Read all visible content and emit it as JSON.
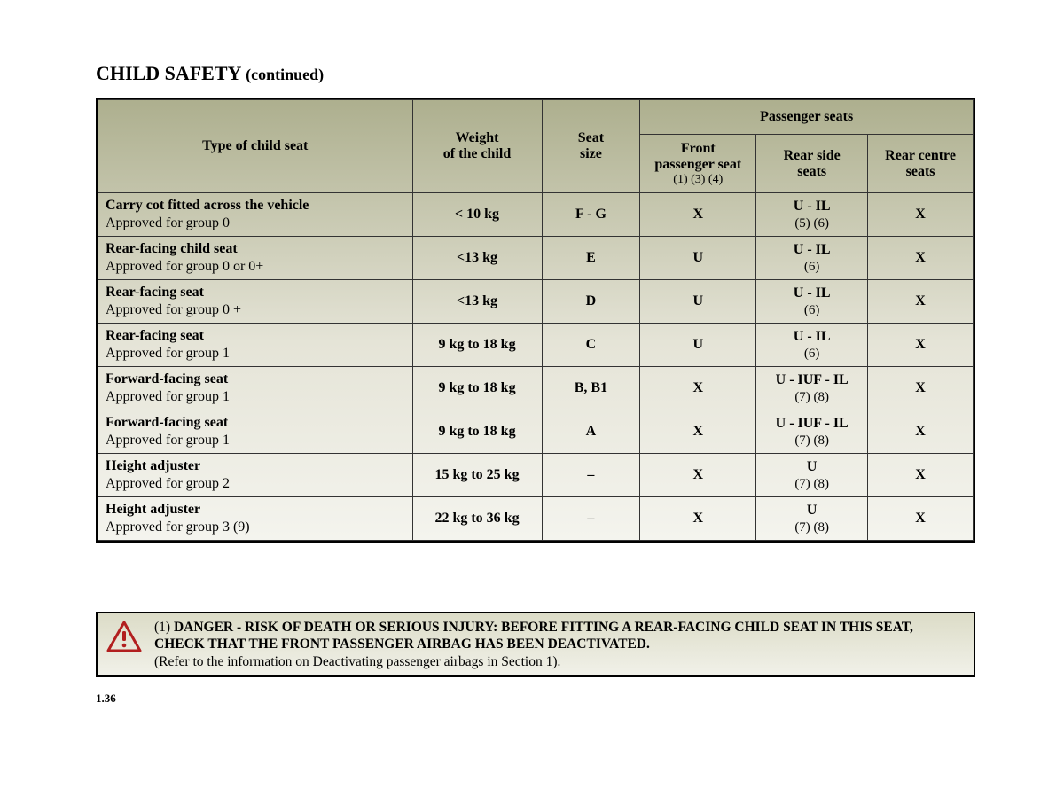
{
  "title_main": "CHILD SAFETY",
  "title_cont": "(continued)",
  "header": {
    "type": "Type of child seat",
    "weight": "Weight\nof the child",
    "size": "Seat\nsize",
    "passenger_seats": "Passenger seats",
    "front": "Front\npassenger seat",
    "front_sub": "(1) (3) (4)",
    "rear_side": "Rear side\nseats",
    "rear_centre": "Rear centre\nseats"
  },
  "rows": [
    {
      "type_bold": "Carry cot fitted across the vehicle",
      "type_sub": "Approved for group 0",
      "weight": "< 10 kg",
      "size": "F - G",
      "front": "X",
      "rear_side": "U - IL",
      "rear_side_sub": "(5) (6)",
      "rear_centre": "X"
    },
    {
      "type_bold": "Rear-facing child seat",
      "type_sub": "Approved for group 0 or 0+",
      "weight": "<13 kg",
      "size": "E",
      "front": "U",
      "rear_side": "U - IL",
      "rear_side_sub": "(6)",
      "rear_centre": "X"
    },
    {
      "type_bold": "Rear-facing seat",
      "type_sub": "Approved for group 0 +",
      "weight": "<13 kg",
      "size": "D",
      "front": "U",
      "rear_side": "U - IL",
      "rear_side_sub": "(6)",
      "rear_centre": "X"
    },
    {
      "type_bold": "Rear-facing seat",
      "type_sub": "Approved for group 1",
      "weight": "9 kg to 18 kg",
      "size": "C",
      "front": "U",
      "rear_side": "U - IL",
      "rear_side_sub": "(6)",
      "rear_centre": "X"
    },
    {
      "type_bold": "Forward-facing seat",
      "type_sub": "Approved for group 1",
      "weight": "9 kg to 18 kg",
      "size": "B, B1",
      "front": "X",
      "rear_side": "U - IUF - IL",
      "rear_side_sub": "(7) (8)",
      "rear_centre": "X"
    },
    {
      "type_bold": "Forward-facing seat",
      "type_sub": "Approved for group 1",
      "weight": "9 kg to 18 kg",
      "size": "A",
      "front": "X",
      "rear_side": "U - IUF - IL",
      "rear_side_sub": "(7) (8)",
      "rear_centre": "X"
    },
    {
      "type_bold": "Height adjuster",
      "type_sub": "Approved for group 2",
      "weight": "15 kg to 25 kg",
      "size": "–",
      "front": "X",
      "rear_side": "U",
      "rear_side_sub": "(7) (8)",
      "rear_centre": "X"
    },
    {
      "type_bold": "Height adjuster",
      "type_sub": "Approved for group 3 (9)",
      "weight": "22 kg to 36 kg",
      "size": "–",
      "front": "X",
      "rear_side": "U",
      "rear_side_sub": "(7) (8)",
      "rear_centre": "X"
    }
  ],
  "warning": {
    "prefix": "(1) ",
    "bold1": "DANGER - RISK OF DEATH OR SERIOUS INJURY: BEFORE FITTING A REAR-FACING CHILD SEAT IN THIS SEAT, CHECK THAT THE FRONT PASSENGER AIRBAG HAS BEEN DEACTIVATED.",
    "line2": "(Refer to the information on Deactivating passenger airbags in Section 1).",
    "icon_stroke": "#b21f1f",
    "icon_fill": "#ffffff"
  },
  "page_number": "1.36",
  "style": {
    "gradient_top": "#adaf8e",
    "gradient_mid": "#e5e4d7",
    "gradient_bot": "#f4f4ee",
    "border_color": "#000000",
    "text_color": "#000000",
    "warn_grad_top": "#dcdcc7",
    "warn_grad_bot": "#f1f1e9"
  }
}
